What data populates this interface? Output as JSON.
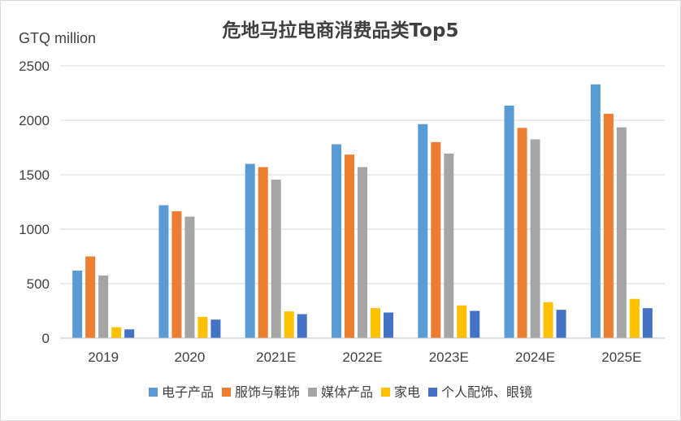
{
  "chart_data": {
    "type": "bar",
    "title": "危地马拉电商消费品类Top5",
    "ylabel": "GTQ million",
    "xlabel": "",
    "categories": [
      "2019",
      "2020",
      "2021E",
      "2022E",
      "2023E",
      "2024E",
      "2025E"
    ],
    "ylim": [
      0,
      2500
    ],
    "yticks": [
      "0",
      "500",
      "1000",
      "1500",
      "2000",
      "2500"
    ],
    "grid": true,
    "legend_position": "bottom",
    "series": [
      {
        "name": "电子产品",
        "color": "#5B9BD5",
        "values": [
          620,
          1220,
          1600,
          1780,
          1965,
          2135,
          2330
        ]
      },
      {
        "name": "服饰与鞋饰",
        "color": "#ED7D31",
        "values": [
          750,
          1165,
          1570,
          1685,
          1800,
          1930,
          2060
        ]
      },
      {
        "name": "媒体产品",
        "color": "#A5A5A5",
        "values": [
          575,
          1115,
          1455,
          1570,
          1695,
          1825,
          1935
        ]
      },
      {
        "name": "家电",
        "color": "#FFC000",
        "values": [
          100,
          195,
          245,
          275,
          300,
          330,
          360
        ]
      },
      {
        "name": "个人配饰、眼镜",
        "color": "#4472C4",
        "values": [
          80,
          170,
          220,
          235,
          250,
          260,
          275
        ]
      }
    ]
  }
}
